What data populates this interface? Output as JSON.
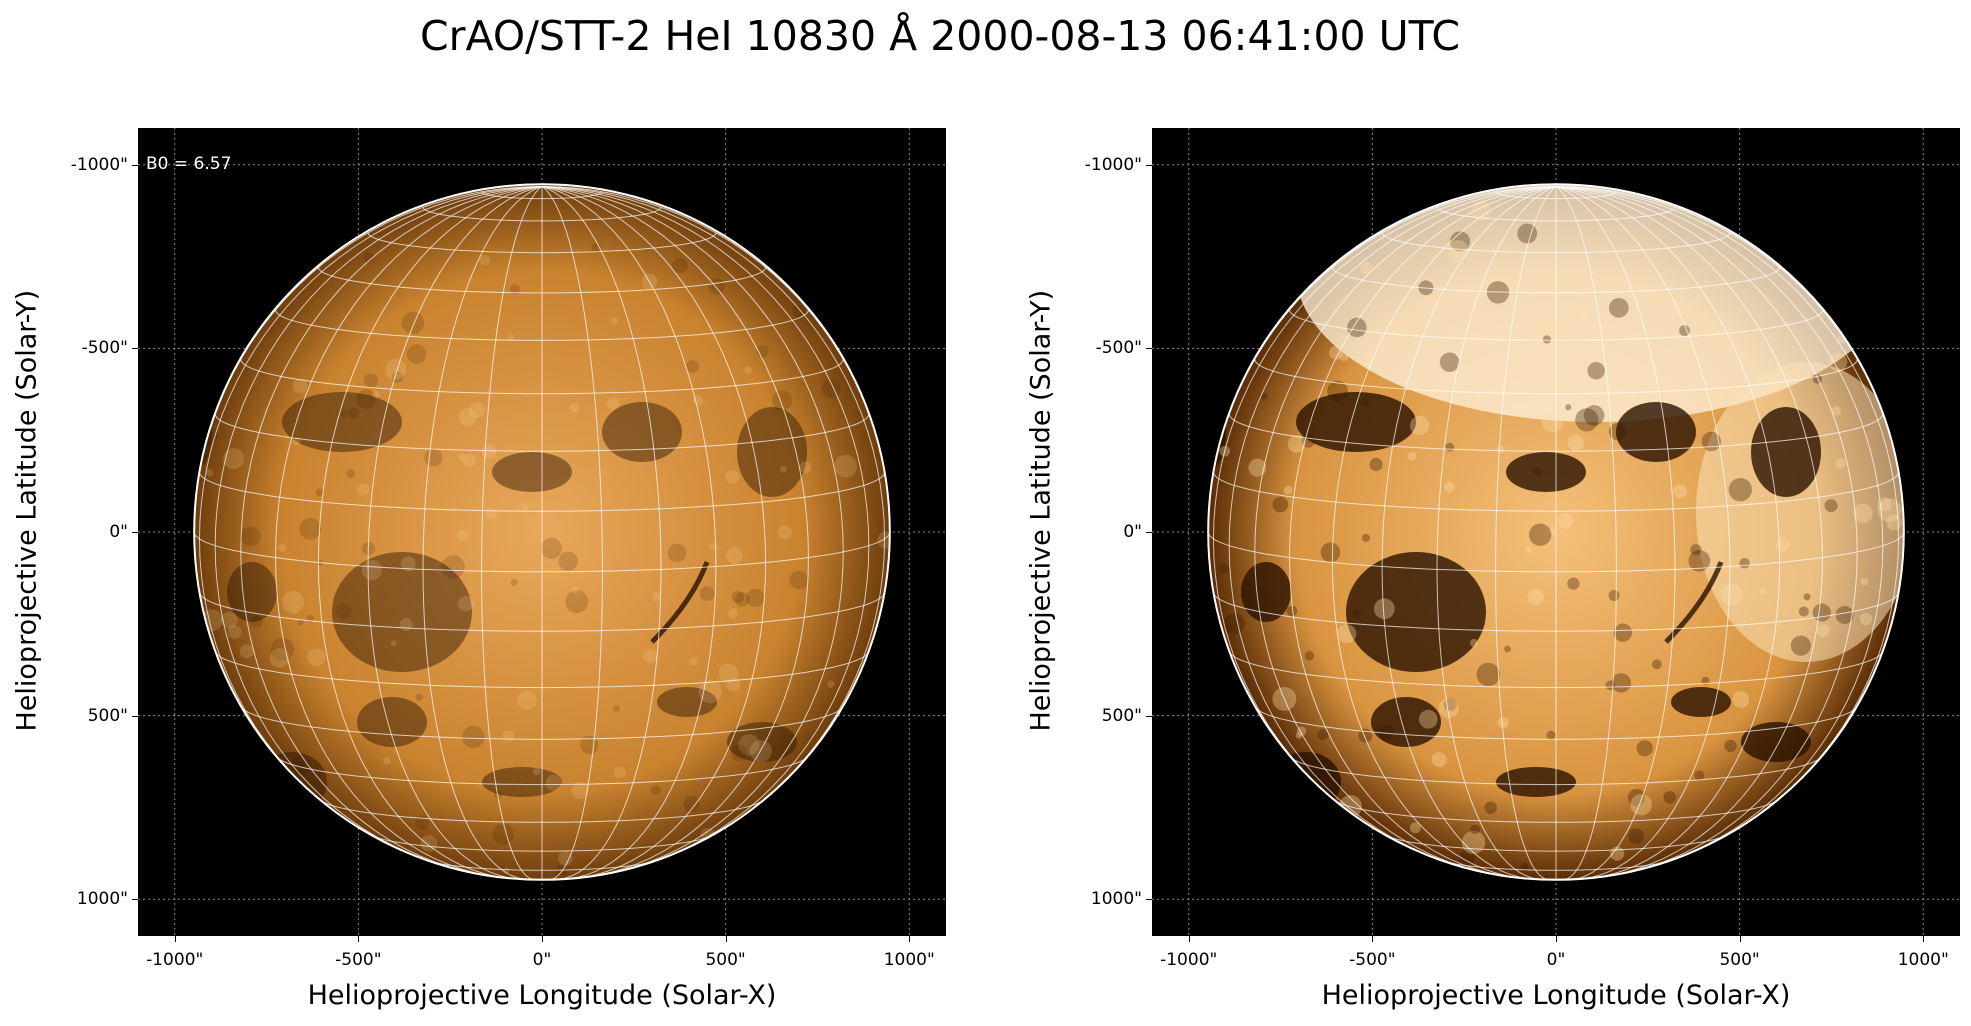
{
  "title": "CrAO/STT-2 HeI 10830 Å 2000-08-13 06:41:00 UTC",
  "panels": [
    {
      "annotation": "B0 = 6.57",
      "xlabel": "Helioprojective Longitude (Solar-X)",
      "ylabel": "Helioprojective Latitude (Solar-Y)",
      "contrast": "normal"
    },
    {
      "annotation": "",
      "xlabel": "Helioprojective Longitude (Solar-X)",
      "ylabel": "Helioprojective Latitude (Solar-Y)",
      "contrast": "high"
    }
  ],
  "axes": {
    "xticks": [
      "-1000\"",
      "-500\"",
      "0\"",
      "500\"",
      "1000\""
    ],
    "yticks": [
      "1000\"",
      "500\"",
      "0\"",
      "-500\"",
      "-1000\""
    ],
    "range_arcsec": [
      -1100,
      1100
    ],
    "solar_radius_arcsec": 947,
    "grid": true
  },
  "colors": {
    "background": "#000000",
    "disk_center": "#e9a85c",
    "disk_limb": "#6e3d0c",
    "grid_line": "#ffffff",
    "limb_line": "#ffffff"
  }
}
